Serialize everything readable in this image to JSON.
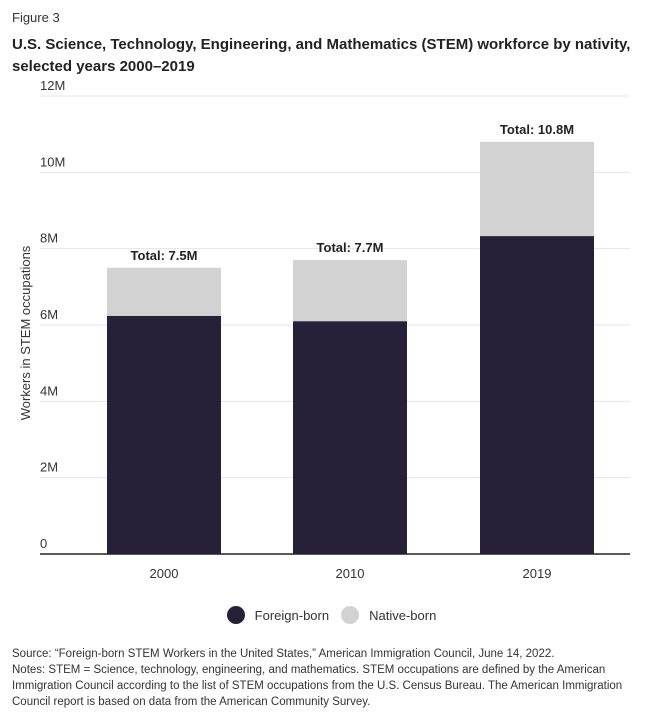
{
  "figure_label": "Figure 3",
  "title": "U.S. Science, Technology, Engineering, and Mathematics (STEM) workforce by nativity, selected years 2000–2019",
  "colors": {
    "foreign": "#262038",
    "native": "#d2d2d2",
    "grid": "#e4e4e4",
    "axis": "#222222"
  },
  "chart_data": {
    "type": "bar",
    "stacked": true,
    "categories": [
      "2000",
      "2010",
      "2019"
    ],
    "series": [
      {
        "name": "Foreign-born",
        "values": [
          6.24,
          6.1,
          8.33
        ]
      },
      {
        "name": "Native-born",
        "values": [
          1.26,
          1.6,
          2.47
        ]
      }
    ],
    "total_labels": [
      "Total: 7.5M",
      "Total: 7.7M",
      "Total: 10.8M"
    ],
    "ylabel": "Workers in STEM occupations",
    "xlabel": "",
    "ylim": [
      0,
      12
    ],
    "yticks": [
      0,
      2,
      4,
      6,
      8,
      10,
      12
    ],
    "ytick_labels": [
      "0",
      "2M",
      "4M",
      "6M",
      "8M",
      "10M",
      "12M"
    ],
    "grid": true,
    "legend_position": "bottom-center"
  },
  "legend": [
    {
      "label": "Foreign-born"
    },
    {
      "label": "Native-born"
    }
  ],
  "source": "Source: “Foreign-born STEM Workers in the United States,” American Immigration Council, June 14, 2022.",
  "notes": "Notes: STEM = Science, technology, engineering, and mathematics. STEM occupations are defined by the American Immigration Council according to the list of STEM occupations from the U.S. Census Bureau. The American Immigration Council report is based on data from the American Community Survey."
}
